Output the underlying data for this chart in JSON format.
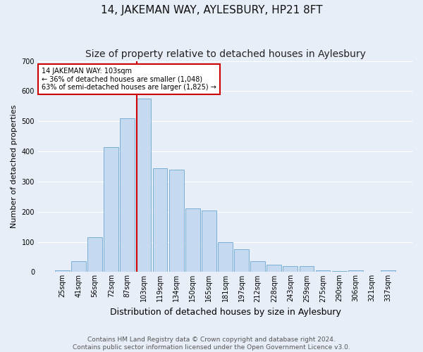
{
  "title": "14, JAKEMAN WAY, AYLESBURY, HP21 8FT",
  "subtitle": "Size of property relative to detached houses in Aylesbury",
  "xlabel": "Distribution of detached houses by size in Aylesbury",
  "ylabel": "Number of detached properties",
  "bar_labels": [
    "25sqm",
    "41sqm",
    "56sqm",
    "72sqm",
    "87sqm",
    "103sqm",
    "119sqm",
    "134sqm",
    "150sqm",
    "165sqm",
    "181sqm",
    "197sqm",
    "212sqm",
    "228sqm",
    "243sqm",
    "259sqm",
    "275sqm",
    "290sqm",
    "306sqm",
    "321sqm",
    "337sqm"
  ],
  "bar_values": [
    5,
    35,
    115,
    415,
    510,
    575,
    345,
    340,
    210,
    205,
    100,
    75,
    35,
    25,
    20,
    20,
    5,
    3,
    5,
    2,
    5
  ],
  "bar_color": "#c5d9f0",
  "bar_edge_color": "#7aafd4",
  "highlight_index": 5,
  "highlight_color": "#cc0000",
  "ylim": [
    0,
    700
  ],
  "yticks": [
    0,
    100,
    200,
    300,
    400,
    500,
    600,
    700
  ],
  "annotation_text": "14 JAKEMAN WAY: 103sqm\n← 36% of detached houses are smaller (1,048)\n63% of semi-detached houses are larger (1,825) →",
  "annotation_box_color": "#ffffff",
  "annotation_box_edge": "#cc0000",
  "footer_line1": "Contains HM Land Registry data © Crown copyright and database right 2024.",
  "footer_line2": "Contains public sector information licensed under the Open Government Licence v3.0.",
  "background_color": "#e8eef8",
  "grid_color": "#ffffff",
  "title_fontsize": 11,
  "subtitle_fontsize": 10,
  "xlabel_fontsize": 9,
  "ylabel_fontsize": 8,
  "tick_fontsize": 7,
  "footer_fontsize": 6.5,
  "bar_width": 0.9
}
